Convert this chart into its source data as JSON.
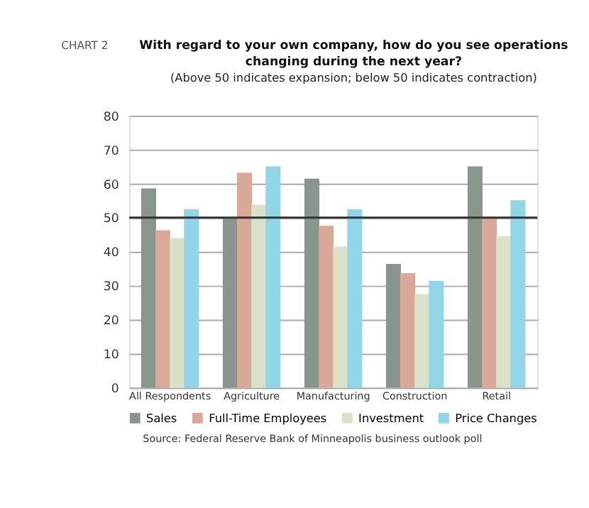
{
  "chart_data": {
    "type": "bar",
    "title": "With regard to your own company, how do you see operations changing during the next year?",
    "subtitle": "(Above 50 indicates expansion; below 50 indicates contraction)",
    "categories": [
      "All Respondents",
      "Agriculture",
      "Manufacturing",
      "Construction",
      "Retail"
    ],
    "series": [
      {
        "name": "Sales",
        "color": "#8a958d",
        "values": [
          58.6,
          50,
          61.5,
          36.4,
          65.1
        ]
      },
      {
        "name": "Full-Time Employees",
        "color": "#d9a896",
        "values": [
          46.3,
          63.2,
          47.6,
          33.7,
          50
        ]
      },
      {
        "name": "Investment",
        "color": "#d9e2c8",
        "values": [
          44,
          53.8,
          41.5,
          27.5,
          44.6
        ]
      },
      {
        "name": "Price Changes",
        "color": "#93d5e8",
        "values": [
          52.5,
          65.1,
          52.5,
          31.4,
          55.1
        ]
      }
    ],
    "ylim": [
      0,
      80
    ],
    "yticks": [
      0,
      10,
      20,
      30,
      40,
      50,
      60,
      70,
      80
    ],
    "grid": "y",
    "legend": "bottom",
    "ref_lines": [
      {
        "axis": "y",
        "value": 50,
        "color": "#333333"
      }
    ],
    "annotations": [
      "CHART 2",
      "Source: Federal Reserve Bank of Minneapolis business outlook poll"
    ]
  }
}
